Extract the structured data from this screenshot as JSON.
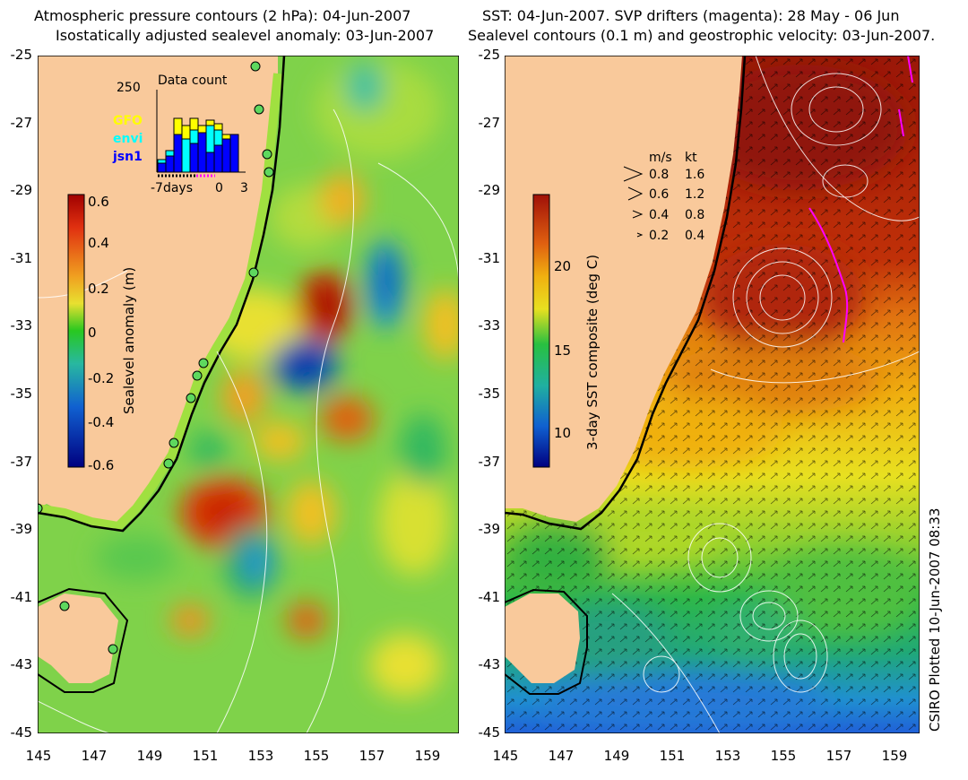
{
  "left_panel": {
    "title_line1": "Atmospheric pressure contours (2 hPa): 04-Jun-2007",
    "title_line2": "Isostatically adjusted sealevel anomaly: 03-Jun-2007",
    "colorbar_label": "Sealevel anomaly (m)",
    "colorbar_ticks": [
      "0.6",
      "0.4",
      "0.2",
      "0",
      "-0.2",
      "-0.4",
      "-0.6"
    ],
    "inset": {
      "title": "Data count",
      "ymax_label": "250",
      "x_labels": [
        "-7days",
        "0",
        "3"
      ],
      "satellites": [
        {
          "name": "GFO",
          "color": "#ffff00"
        },
        {
          "name": "envi",
          "color": "#00ffff"
        },
        {
          "name": "jsn1",
          "color": "#0000ff"
        }
      ]
    }
  },
  "right_panel": {
    "title_line1": "SST: 04-Jun-2007. SVP drifters (magenta): 28 May - 06 Jun",
    "title_line2": "Sealevel contours (0.1 m) and geostrophic velocity: 03-Jun-2007.",
    "colorbar_label": "3-day SST composite (deg C)",
    "colorbar_ticks": [
      "20",
      "15",
      "10"
    ],
    "velocity_legend": {
      "header_ms": "m/s",
      "header_kt": "kt",
      "rows": [
        {
          "ms": "0.8",
          "kt": "1.6"
        },
        {
          "ms": "0.6",
          "kt": "1.2"
        },
        {
          "ms": "0.4",
          "kt": "0.8"
        },
        {
          "ms": "0.2",
          "kt": "0.4"
        }
      ]
    }
  },
  "axes": {
    "y_ticks": [
      "-25",
      "-27",
      "-29",
      "-31",
      "-33",
      "-35",
      "-37",
      "-39",
      "-41",
      "-43",
      "-45"
    ],
    "x_ticks": [
      "145",
      "147",
      "149",
      "151",
      "153",
      "155",
      "157",
      "159"
    ]
  },
  "credit": "CSIRO Plotted 10-Jun-2007 08:33",
  "colors": {
    "land": "#f9c99b",
    "sla_positive": "#d42800",
    "sla_negative": "#0028a0",
    "sla_zero": "#28c820",
    "sst_warm": "#9a1808",
    "sst_cold": "#1818a0"
  }
}
